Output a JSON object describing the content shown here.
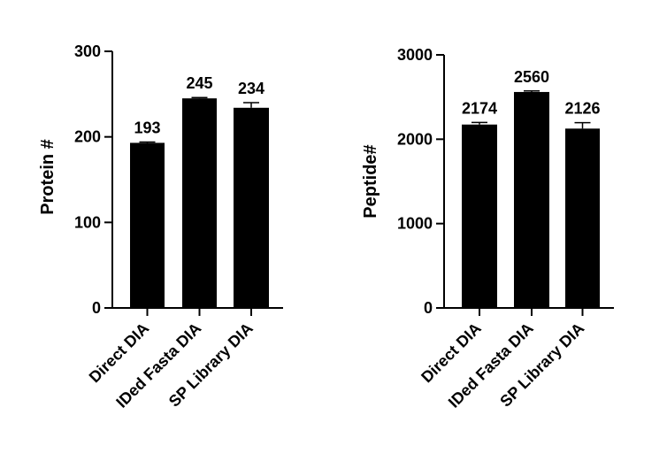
{
  "chart_data": [
    {
      "type": "bar",
      "title": "",
      "xlabel": "",
      "ylabel": "Protein #",
      "ylim": [
        0,
        300
      ],
      "yticks": [
        0,
        100,
        200,
        300
      ],
      "categories": [
        "Direct DIA",
        "IDed Fasta DIA",
        "SP Library DIA"
      ],
      "values": [
        193,
        245,
        234
      ],
      "error_plus": [
        1,
        1,
        6
      ],
      "data_labels": [
        "193",
        "245",
        "234"
      ],
      "bar_color": "#000000",
      "grid": false,
      "legend": "none"
    },
    {
      "type": "bar",
      "title": "",
      "xlabel": "",
      "ylabel": "Peptide#",
      "ylim": [
        0,
        3000
      ],
      "yticks": [
        0,
        1000,
        2000,
        3000
      ],
      "categories": [
        "Direct DIA",
        "IDed Fasta DIA",
        "SP Library DIA"
      ],
      "values": [
        2174,
        2560,
        2126
      ],
      "error_plus": [
        25,
        12,
        70
      ],
      "data_labels": [
        "2174",
        "2560",
        "2126"
      ],
      "bar_color": "#000000",
      "grid": false,
      "legend": "none"
    }
  ]
}
